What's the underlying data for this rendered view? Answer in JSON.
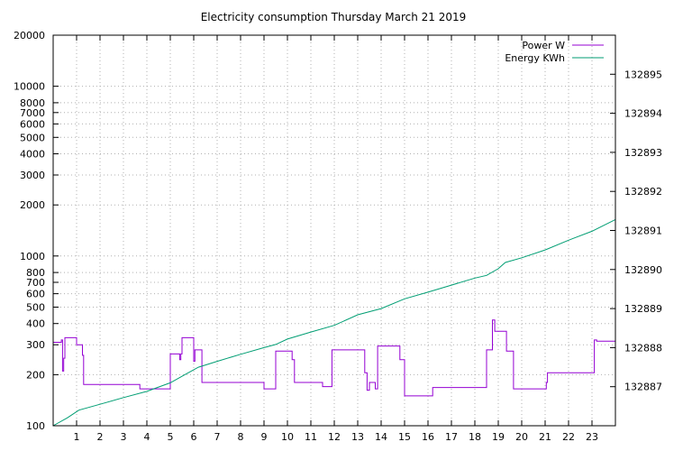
{
  "chart_data": {
    "type": "line",
    "title": "Electricity consumption Thursday March 21 2019",
    "xlim": [
      0,
      24
    ],
    "x_ticks": [
      1,
      2,
      3,
      4,
      5,
      6,
      7,
      8,
      9,
      10,
      11,
      12,
      13,
      14,
      15,
      16,
      17,
      18,
      19,
      20,
      21,
      22,
      23
    ],
    "y_scale": "log",
    "ylim": [
      100,
      20000
    ],
    "y_ticks": [
      100,
      200,
      300,
      400,
      500,
      600,
      700,
      800,
      1000,
      2000,
      3000,
      4000,
      5000,
      6000,
      7000,
      8000,
      10000,
      20000
    ],
    "y2_scale": "linear",
    "y2lim": [
      132886,
      132896
    ],
    "y2_ticks": [
      132887,
      132888,
      132889,
      132890,
      132891,
      132892,
      132893,
      132894,
      132895
    ],
    "grid": true,
    "legend_position": "top-right",
    "colors": {
      "power": "#9400d3",
      "energy": "#009e73",
      "grid": "#b0b0b0"
    },
    "series": [
      {
        "name": "Power W",
        "axis": "left",
        "step": true,
        "x": [
          0,
          0.35,
          0.4,
          0.45,
          0.5,
          0.95,
          1.0,
          1.25,
          1.3,
          3.6,
          3.7,
          4.9,
          5.0,
          5.4,
          5.45,
          5.5,
          5.95,
          6.0,
          6.05,
          6.3,
          6.35,
          8.9,
          9.0,
          9.45,
          9.5,
          10.15,
          10.2,
          10.3,
          11.4,
          11.5,
          11.8,
          11.9,
          13.2,
          13.3,
          13.4,
          13.5,
          13.75,
          13.85,
          14.75,
          14.8,
          15.0,
          16.15,
          16.2,
          18.45,
          18.5,
          18.7,
          18.75,
          18.85,
          19.3,
          19.35,
          19.6,
          19.65,
          21.0,
          21.05,
          21.1,
          23.0,
          23.1,
          23.2,
          23.9,
          24.0
        ],
        "values": [
          310,
          320,
          210,
          250,
          330,
          330,
          300,
          260,
          175,
          175,
          165,
          165,
          265,
          245,
          265,
          330,
          330,
          240,
          280,
          280,
          180,
          180,
          165,
          165,
          275,
          275,
          245,
          180,
          180,
          170,
          170,
          280,
          280,
          205,
          162,
          180,
          165,
          295,
          295,
          245,
          150,
          150,
          168,
          168,
          280,
          280,
          420,
          360,
          360,
          275,
          275,
          165,
          165,
          180,
          205,
          205,
          320,
          315,
          315,
          245
        ]
      },
      {
        "name": "Energy KWh",
        "axis": "right",
        "x": [
          0,
          0.6,
          1.1,
          2.0,
          3.0,
          4.0,
          5.0,
          5.6,
          6.2,
          7.0,
          8.0,
          9.0,
          9.5,
          10.0,
          11.0,
          12.0,
          13.0,
          14.0,
          15.0,
          16.0,
          17.0,
          18.0,
          18.5,
          19.0,
          19.3,
          20.0,
          21.0,
          22.0,
          23.0,
          24.0
        ],
        "values": [
          132886.0,
          132886.2,
          132886.4,
          132886.55,
          132886.72,
          132886.88,
          132887.1,
          132887.3,
          132887.5,
          132887.65,
          132887.83,
          132888.0,
          132888.08,
          132888.22,
          132888.4,
          132888.57,
          132888.84,
          132889.0,
          132889.25,
          132889.42,
          132889.6,
          132889.78,
          132889.85,
          132890.02,
          132890.18,
          132890.3,
          132890.5,
          132890.75,
          132890.98,
          132891.28
        ]
      }
    ]
  }
}
